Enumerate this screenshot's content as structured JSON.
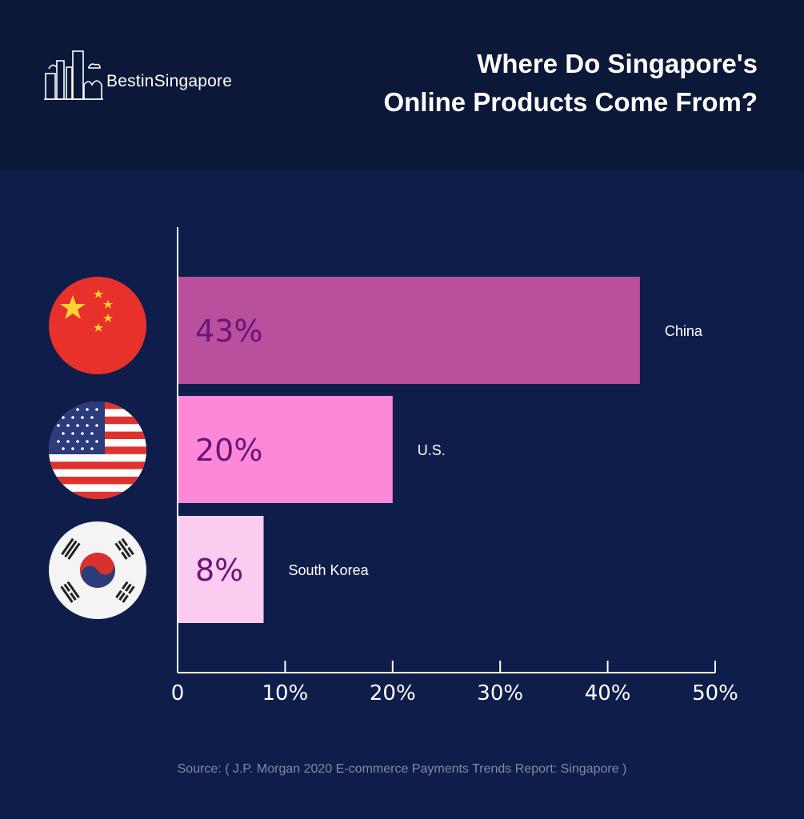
{
  "header": {
    "brand": "BestinSingapore",
    "title_line1": "Where Do Singapore's",
    "title_line2": "Online Products Come From?"
  },
  "flags": [
    {
      "country": "China",
      "icon": "china-flag-icon"
    },
    {
      "country": "U.S.",
      "icon": "usa-flag-icon"
    },
    {
      "country": "South Korea",
      "icon": "south-korea-flag-icon"
    }
  ],
  "colors": {
    "background": "#0f1d4a",
    "header": "#0c1838",
    "bar_china": "#b94f9d",
    "bar_us": "#fd88d8",
    "bar_korea": "#fccbf0",
    "bar_text": "#6a1577",
    "axis": "#ffffff"
  },
  "chart_data": {
    "type": "bar",
    "orientation": "horizontal",
    "categories": [
      "China",
      "U.S.",
      "South Korea"
    ],
    "values": [
      43,
      20,
      8
    ],
    "value_labels": [
      "43%",
      "20%",
      "8%"
    ],
    "xlim": [
      0,
      50
    ],
    "xticks": [
      0,
      10,
      20,
      30,
      40,
      50
    ],
    "xtick_labels": [
      "0",
      "10%",
      "20%",
      "30%",
      "40%",
      "50%"
    ],
    "grid": false
  },
  "source": "Source: ( J.P. Morgan 2020 E-commerce Payments Trends Report: Singapore )"
}
